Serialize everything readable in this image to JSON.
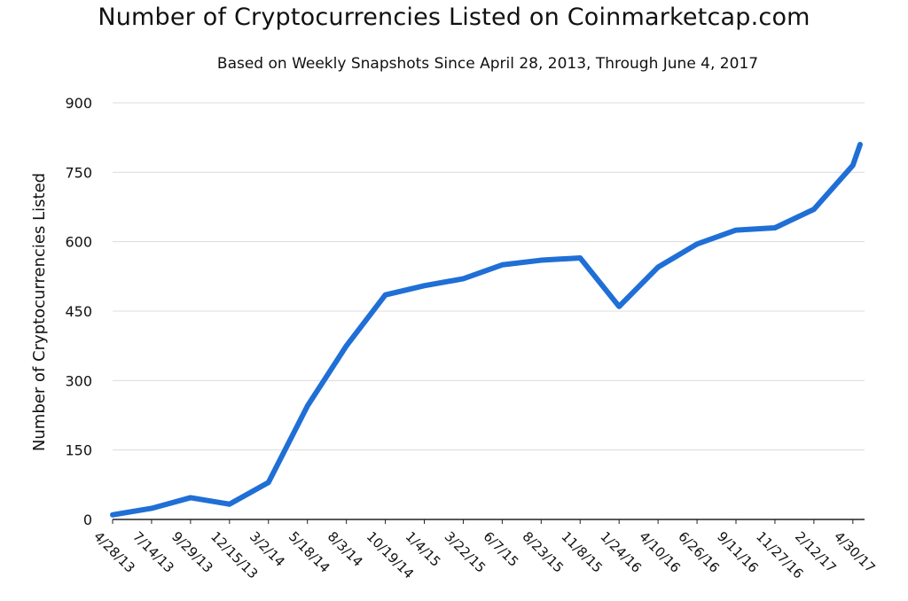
{
  "chart_data": {
    "type": "line",
    "title": "Number of Cryptocurrencies Listed on Coinmarketcap.com",
    "subtitle": "Based on Weekly Snapshots Since April 28, 2013, Through June 4, 2017",
    "ylabel": "Number of Cryptocurrencies Listed",
    "xlabel": "",
    "ylim": [
      0,
      900
    ],
    "yticks": [
      "0",
      "150",
      "300",
      "450",
      "600",
      "750",
      "900"
    ],
    "grid": true,
    "line_color": "#1f6fd6",
    "x_tick_labels": [
      "4/28/13",
      "7/14/13",
      "9/29/13",
      "12/15/13",
      "3/2/14",
      "5/18/14",
      "8/3/14",
      "10/19/14",
      "1/4/15",
      "3/22/15",
      "6/7/15",
      "8/23/15",
      "11/8/15",
      "1/24/16",
      "4/10/16",
      "6/26/16",
      "9/11/16",
      "11/27/16",
      "2/12/17",
      "4/30/17"
    ],
    "series": [
      {
        "x": [
          "4/28/13",
          "7/14/13",
          "9/29/13",
          "12/15/13",
          "3/2/14",
          "5/18/14",
          "8/3/14",
          "10/19/14",
          "1/4/15",
          "3/22/15",
          "6/7/15",
          "8/23/15",
          "11/8/15",
          "1/24/16",
          "4/10/16",
          "6/26/16",
          "9/11/16",
          "11/27/16",
          "2/12/17",
          "4/30/17",
          "6/4/17"
        ],
        "values": [
          10,
          24,
          47,
          33,
          80,
          245,
          375,
          485,
          505,
          520,
          550,
          560,
          565,
          460,
          545,
          595,
          625,
          630,
          670,
          765,
          810
        ]
      }
    ]
  }
}
